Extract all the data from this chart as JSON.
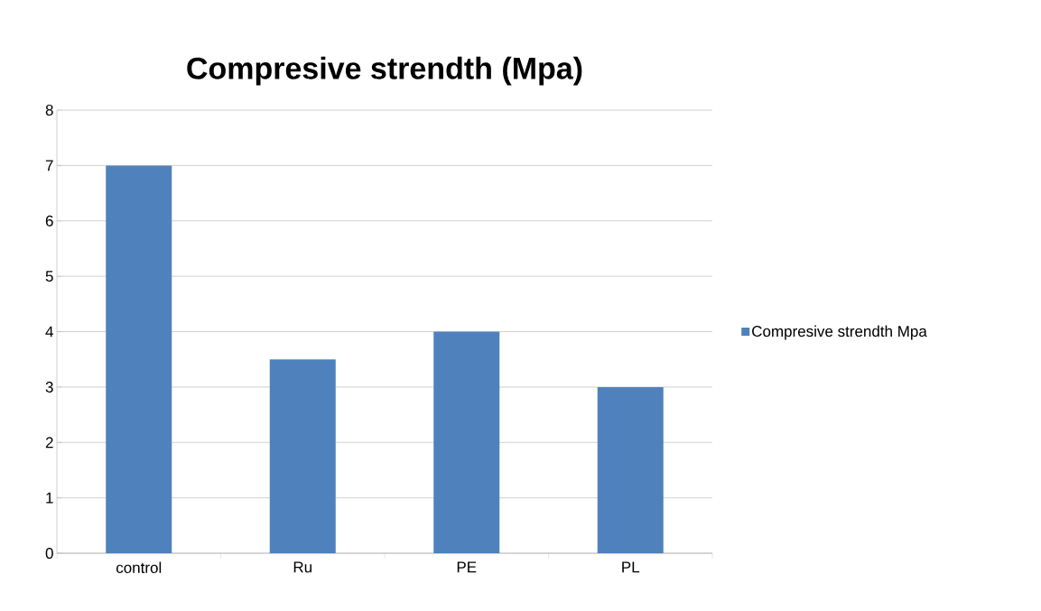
{
  "chart_data": {
    "type": "bar",
    "title": "Compresive strendth (Mpa)",
    "categories": [
      "control",
      "Ru",
      "PE",
      "PL"
    ],
    "series": [
      {
        "name": "Compresive strendth Mpa",
        "color": "#4f81bd",
        "values": [
          7,
          3.5,
          4,
          3
        ]
      }
    ],
    "ylim": [
      0,
      8
    ],
    "yticks": [
      0,
      1,
      2,
      3,
      4,
      5,
      6,
      7,
      8
    ],
    "grid": "y",
    "legend": "right"
  }
}
